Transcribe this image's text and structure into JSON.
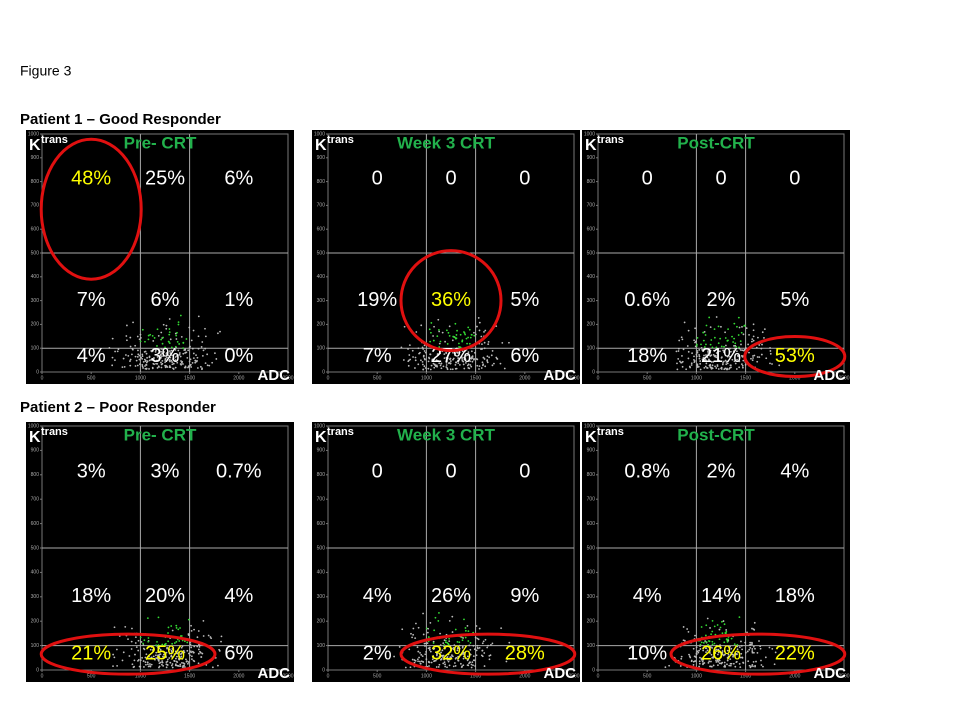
{
  "figure_label": "Figure 3",
  "y_axis_label": {
    "base": "K",
    "superscript": "trans"
  },
  "x_axis_label": "ADC",
  "xlim": [
    0,
    2500
  ],
  "ylim": [
    0,
    1000
  ],
  "xticks": [
    0,
    500,
    1000,
    1500,
    2000,
    2500
  ],
  "yticks": [
    0,
    100,
    200,
    300,
    400,
    500,
    600,
    700,
    800,
    900,
    1000
  ],
  "text_color": "#ffffff",
  "highlight_color": "#ffff00",
  "title_color": "#22b14c",
  "ellipse_color": "#e01010",
  "rows": [
    {
      "title": "Patient 1 – Good Responder",
      "panels": [
        {
          "title": "Pre- CRT",
          "cells": [
            "48%",
            "25%",
            "6%",
            "7%",
            "6%",
            "1%",
            "4%",
            "3%",
            "0%"
          ],
          "highlighted": [
            0
          ]
        },
        {
          "title": "Week 3 CRT",
          "cells": [
            "0",
            "0",
            "0",
            "19%",
            "36%",
            "5%",
            "7%",
            "27%",
            "6%"
          ],
          "highlighted": [
            4
          ]
        },
        {
          "title": "Post-CRT",
          "cells": [
            "0",
            "0",
            "0",
            "0.6%",
            "2%",
            "5%",
            "18%",
            "21%",
            "53%"
          ],
          "highlighted": [
            8
          ]
        }
      ]
    },
    {
      "title": "Patient 2 – Poor Responder",
      "panels": [
        {
          "title": "Pre- CRT",
          "cells": [
            "3%",
            "3%",
            "0.7%",
            "18%",
            "20%",
            "4%",
            "21%",
            "25%",
            "6%"
          ],
          "highlighted": [
            6,
            7
          ]
        },
        {
          "title": "Week 3 CRT",
          "cells": [
            "0",
            "0",
            "0",
            "4%",
            "26%",
            "9%",
            "2%",
            "32%",
            "28%"
          ],
          "highlighted": [
            7,
            8
          ]
        },
        {
          "title": "Post-CRT",
          "cells": [
            "0.8%",
            "2%",
            "4%",
            "4%",
            "14%",
            "18%",
            "10%",
            "26%",
            "22%"
          ],
          "highlighted": [
            7,
            8
          ]
        }
      ]
    }
  ]
}
